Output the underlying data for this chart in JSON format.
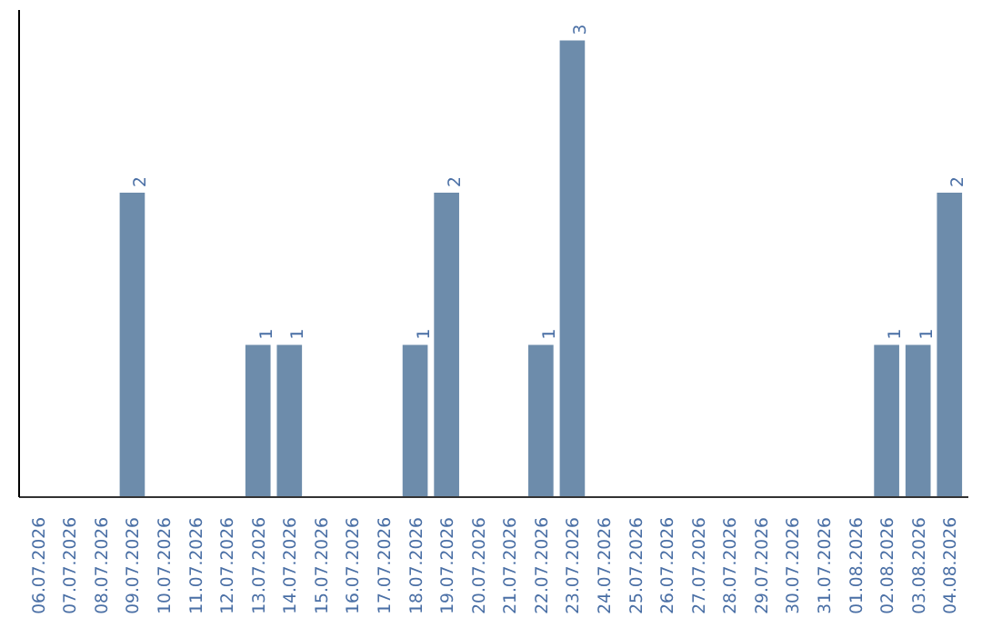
{
  "chart_data": {
    "type": "bar",
    "categories": [
      "06.07.2026",
      "07.07.2026",
      "08.07.2026",
      "09.07.2026",
      "10.07.2026",
      "11.07.2026",
      "12.07.2026",
      "13.07.2026",
      "14.07.2026",
      "15.07.2026",
      "16.07.2026",
      "17.07.2026",
      "18.07.2026",
      "19.07.2026",
      "20.07.2026",
      "21.07.2026",
      "22.07.2026",
      "23.07.2026",
      "24.07.2026",
      "25.07.2026",
      "26.07.2026",
      "27.07.2026",
      "28.07.2026",
      "29.07.2026",
      "30.07.2026",
      "31.07.2026",
      "01.08.2026",
      "02.08.2026",
      "03.08.2026",
      "04.08.2026"
    ],
    "values": [
      0,
      0,
      0,
      2,
      0,
      0,
      0,
      1,
      1,
      0,
      0,
      0,
      1,
      2,
      0,
      0,
      1,
      3,
      0,
      0,
      0,
      0,
      0,
      0,
      0,
      0,
      0,
      1,
      1,
      2
    ],
    "value_labels": [
      null,
      null,
      null,
      "2",
      null,
      null,
      null,
      "1",
      "1",
      null,
      null,
      null,
      "1",
      "2",
      null,
      null,
      "1",
      "3",
      null,
      null,
      null,
      null,
      null,
      null,
      null,
      null,
      null,
      "1",
      "1",
      "2"
    ],
    "color": "#6d8cab",
    "ylim": [
      0,
      3.2
    ]
  }
}
